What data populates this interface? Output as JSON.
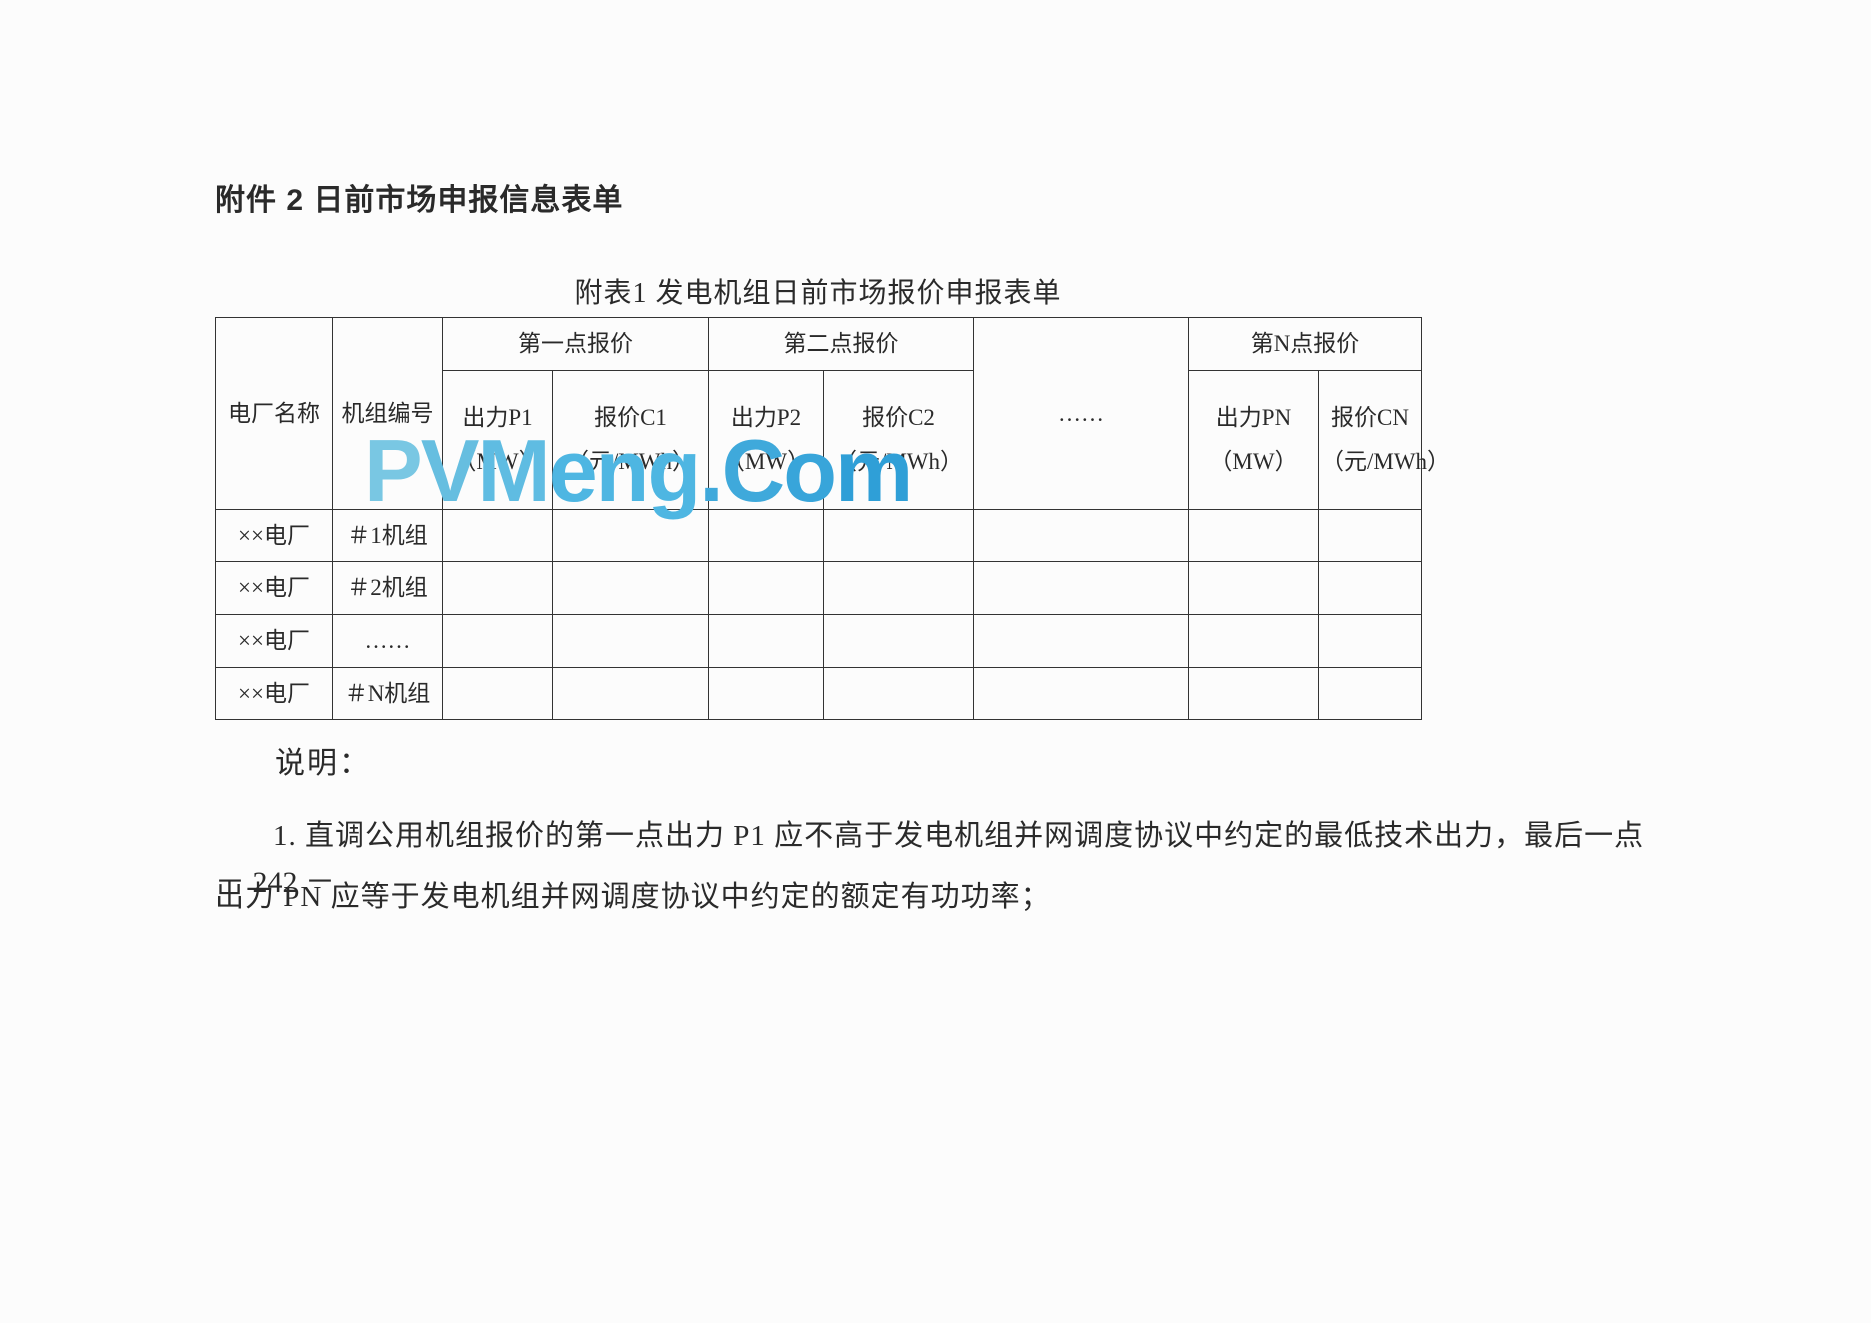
{
  "section_title": "附件 2  日前市场申报信息表单",
  "table": {
    "caption": "附表1  发电机组日前市场报价申报表单",
    "columns": {
      "plant": "电厂名称",
      "unit": "机组编号",
      "group1": "第一点报价",
      "p1": "出力P1（MW）",
      "c1": "报价C1（元/MWh）",
      "group2": "第二点报价",
      "p2": "出力P2（MW）",
      "c2": "报价C2（元/MWh）",
      "ellipsis": "……",
      "groupN": "第N点报价",
      "pn": "出力PN（MW）",
      "cn": "报价CN（元/MWh）"
    },
    "rows": [
      {
        "plant": "××电厂",
        "unit": "＃1机组"
      },
      {
        "plant": "××电厂",
        "unit": "＃2机组"
      },
      {
        "plant": "××电厂",
        "unit": "……"
      },
      {
        "plant": "××电厂",
        "unit": "＃N机组"
      }
    ],
    "border_color": "#333333",
    "font_size": 23,
    "text_color": "#2a2a2a"
  },
  "notes": {
    "label": "说明：",
    "item1": "1. 直调公用机组报价的第一点出力 P1 应不高于发电机组并网调度协议中约定的最低技术出力，最后一点出力 PN 应等于发电机组并网调度协议中约定的额定有功功率；"
  },
  "page_number": "－ 242 －",
  "watermark": {
    "chars": [
      "P",
      "V",
      "M",
      "e",
      "n",
      "g",
      ".",
      "C",
      "o",
      "m"
    ],
    "classes": [
      "wm-p",
      "wm-v",
      "wm-m1",
      "wm-e",
      "wm-n",
      "wm-g",
      "wm-dot",
      "wm-c",
      "wm-o",
      "wm-m2"
    ]
  },
  "background_color": "#fcfcfc"
}
